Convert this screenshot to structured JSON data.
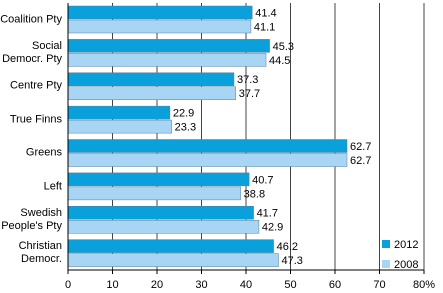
{
  "chart_data": {
    "type": "hbar",
    "categories": [
      "Coalition Pty",
      "Social\nDemocr. Pty",
      "Centre Pty",
      "True Finns",
      "Greens",
      "Left",
      "Swedish\nPeople's Pty",
      "Christian\nDemocr."
    ],
    "series": [
      {
        "name": "2012",
        "color": "#0aa0dc",
        "values": [
          41.4,
          45.3,
          37.3,
          22.9,
          62.7,
          40.7,
          41.7,
          46.2
        ]
      },
      {
        "name": "2008",
        "color": "#a9d5f5",
        "values": [
          41.1,
          44.5,
          37.7,
          23.3,
          62.7,
          38.8,
          42.9,
          47.3
        ]
      }
    ],
    "xlim": [
      0,
      80
    ],
    "xticks": [
      0,
      10,
      20,
      30,
      40,
      50,
      60,
      70,
      {
        "value": 80,
        "label": "80%"
      }
    ],
    "grid": true,
    "legend": "bottom-right"
  }
}
